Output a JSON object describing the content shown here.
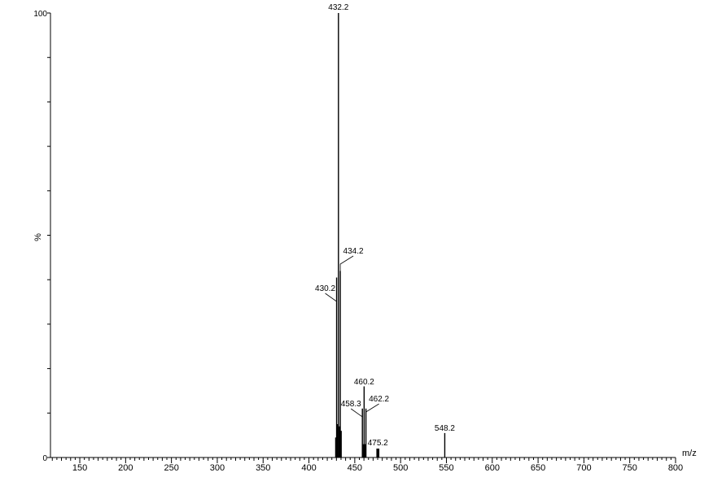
{
  "chart_data": {
    "type": "bar",
    "title": "",
    "xlabel": "m/z",
    "ylabel": "%",
    "xlim": [
      118,
      800
    ],
    "ylim": [
      0,
      100
    ],
    "x_ticks": [
      150,
      200,
      250,
      300,
      350,
      400,
      450,
      500,
      550,
      600,
      650,
      700,
      750,
      800
    ],
    "y_ticks": [
      0,
      100
    ],
    "grid": false,
    "legend": "none",
    "peaks": [
      {
        "x": 429.2,
        "y": 4.5,
        "label": ""
      },
      {
        "x": 430.2,
        "y": 40.5,
        "label": "430.2"
      },
      {
        "x": 431.2,
        "y": 7.5,
        "label": ""
      },
      {
        "x": 432.2,
        "y": 100,
        "label": "432.2"
      },
      {
        "x": 433.2,
        "y": 7.0,
        "label": ""
      },
      {
        "x": 434.2,
        "y": 42.0,
        "label": "434.2"
      },
      {
        "x": 435.2,
        "y": 6.0,
        "label": ""
      },
      {
        "x": 458.3,
        "y": 11.0,
        "label": "458.3"
      },
      {
        "x": 459.2,
        "y": 3.0,
        "label": ""
      },
      {
        "x": 460.2,
        "y": 16.0,
        "label": "460.2"
      },
      {
        "x": 461.2,
        "y": 3.0,
        "label": ""
      },
      {
        "x": 462.2,
        "y": 11.0,
        "label": "462.2"
      },
      {
        "x": 474.2,
        "y": 2.0,
        "label": ""
      },
      {
        "x": 475.2,
        "y": 2.0,
        "label": "475.2"
      },
      {
        "x": 476.2,
        "y": 2.0,
        "label": ""
      },
      {
        "x": 548.2,
        "y": 5.5,
        "label": "548.2"
      }
    ]
  }
}
